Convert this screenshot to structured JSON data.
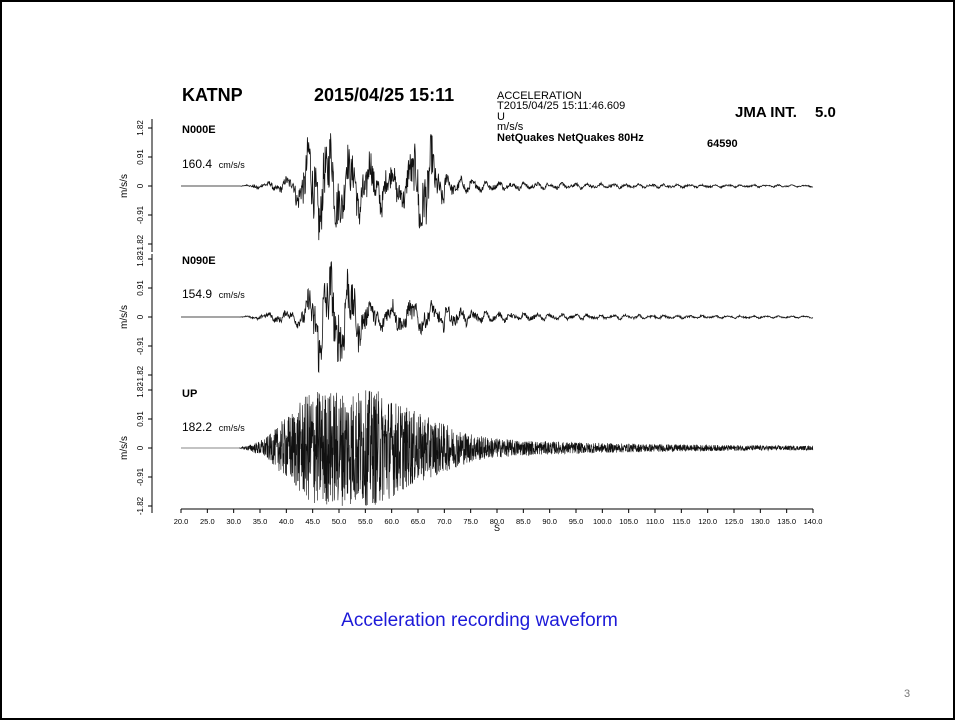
{
  "header": {
    "station": "KATNP",
    "datetime": "2015/04/25 15:11",
    "record_type": "ACCELERATION",
    "trigger_time": "T2015/04/25 15:11:46.609",
    "component": "U",
    "unit": "m/s/s",
    "instrument": "NetQuakes NetQuakes 80Hz",
    "sample_count": "64590",
    "jma_label": "JMA INT.",
    "jma_value": "5.0"
  },
  "chart_data": {
    "type": "line",
    "xlabel": "S",
    "xlim": [
      20,
      140
    ],
    "x_ticks": [
      "20.0",
      "25.0",
      "30.0",
      "35.0",
      "40.0",
      "45.0",
      "50.0",
      "55.0",
      "60.0",
      "65.0",
      "70.0",
      "75.0",
      "80.0",
      "85.0",
      "90.0",
      "95.0",
      "100.0",
      "105.0",
      "110.0",
      "115.0",
      "120.0",
      "125.0",
      "130.0",
      "135.0",
      "140.0"
    ],
    "ylabel": "m/s/s",
    "ylim": [
      -1.82,
      1.82
    ],
    "y_ticks": [
      "-1.82",
      "-0.91",
      "0",
      "0.91",
      "1.82"
    ],
    "series": [
      {
        "name": "N000E",
        "peak": "160.4",
        "peak_unit": "cm/s/s"
      },
      {
        "name": "N090E",
        "peak": "154.9",
        "peak_unit": "cm/s/s"
      },
      {
        "name": "UP",
        "peak": "182.2",
        "peak_unit": "cm/s/s"
      }
    ]
  },
  "caption": "Acceleration recording waveform",
  "page_number": "3"
}
